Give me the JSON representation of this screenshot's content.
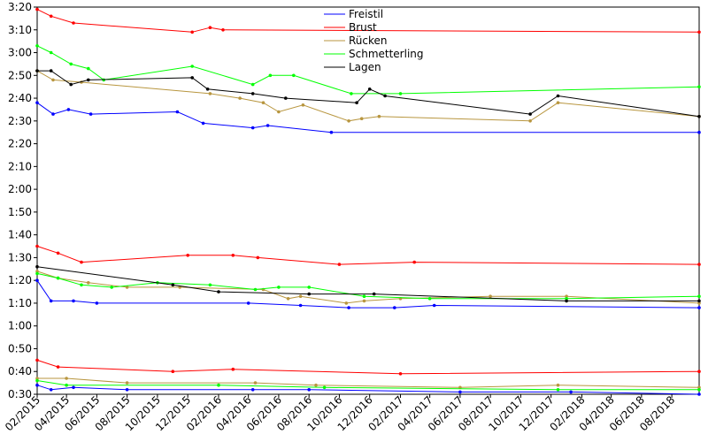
{
  "chart_data": {
    "type": "line",
    "xaxis_type": "date",
    "x_range": [
      "2015-02-01",
      "2018-09-25"
    ],
    "y_range": [
      "0:30",
      "3:20"
    ],
    "grid": false,
    "legend_position": "top-center",
    "x_tick_labels": [
      "02/2015",
      "04/2015",
      "06/2015",
      "08/2015",
      "10/2015",
      "12/2015",
      "02/2016",
      "04/2016",
      "06/2016",
      "08/2016",
      "10/2016",
      "12/2016",
      "02/2017",
      "04/2017",
      "06/2017",
      "08/2017",
      "10/2017",
      "12/2017",
      "02/2018",
      "04/2018",
      "06/2018",
      "08/2018"
    ],
    "y_tick_labels": [
      "0:30",
      "0:40",
      "0:50",
      "1:00",
      "1:10",
      "1:20",
      "1:30",
      "1:40",
      "1:50",
      "2:00",
      "2:10",
      "2:20",
      "2:30",
      "2:40",
      "2:50",
      "3:00",
      "3:10",
      "3:20"
    ],
    "series": [
      {
        "name": "Freistil",
        "color": "#0000ff",
        "lines": [
          {
            "points": [
              [
                "2015-02-01",
                "2:38"
              ],
              [
                "2015-03-05",
                "2:33"
              ],
              [
                "2015-04-05",
                "2:35"
              ],
              [
                "2015-05-20",
                "2:33"
              ],
              [
                "2015-11-10",
                "2:34"
              ],
              [
                "2016-01-01",
                "2:29"
              ],
              [
                "2016-04-10",
                "2:27"
              ],
              [
                "2016-05-10",
                "2:28"
              ],
              [
                "2016-09-15",
                "2:25"
              ],
              [
                "2018-09-25",
                "2:25"
              ]
            ]
          },
          {
            "points": [
              [
                "2015-02-01",
                "1:20"
              ],
              [
                "2015-03-01",
                "1:11"
              ],
              [
                "2015-04-15",
                "1:11"
              ],
              [
                "2015-06-01",
                "1:10"
              ],
              [
                "2016-04-01",
                "1:10"
              ],
              [
                "2016-07-15",
                "1:09"
              ],
              [
                "2016-10-20",
                "1:08"
              ],
              [
                "2017-01-20",
                "1:08"
              ],
              [
                "2017-04-10",
                "1:09"
              ],
              [
                "2018-09-25",
                "1:08"
              ]
            ]
          },
          {
            "points": [
              [
                "2015-02-01",
                "0:34"
              ],
              [
                "2015-03-01",
                "0:32"
              ],
              [
                "2015-04-15",
                "0:33"
              ],
              [
                "2015-08-01",
                "0:32"
              ],
              [
                "2016-04-10",
                "0:32"
              ],
              [
                "2016-08-01",
                "0:32"
              ],
              [
                "2017-06-01",
                "0:31"
              ],
              [
                "2018-01-10",
                "0:31"
              ],
              [
                "2018-09-25",
                "0:30"
              ]
            ]
          }
        ]
      },
      {
        "name": "Brust",
        "color": "#ff0000",
        "lines": [
          {
            "points": [
              [
                "2015-02-01",
                "3:19"
              ],
              [
                "2015-03-01",
                "3:16"
              ],
              [
                "2015-04-15",
                "3:13"
              ],
              [
                "2015-12-10",
                "3:09"
              ],
              [
                "2016-01-15",
                "3:11"
              ],
              [
                "2016-02-10",
                "3:10"
              ],
              [
                "2018-09-25",
                "3:09"
              ]
            ]
          },
          {
            "points": [
              [
                "2015-02-01",
                "1:35"
              ],
              [
                "2015-03-15",
                "1:32"
              ],
              [
                "2015-05-01",
                "1:28"
              ],
              [
                "2015-12-01",
                "1:31"
              ],
              [
                "2016-03-01",
                "1:31"
              ],
              [
                "2016-04-20",
                "1:30"
              ],
              [
                "2016-10-01",
                "1:27"
              ],
              [
                "2017-03-01",
                "1:28"
              ],
              [
                "2018-09-25",
                "1:27"
              ]
            ]
          },
          {
            "points": [
              [
                "2015-02-01",
                "0:45"
              ],
              [
                "2015-03-15",
                "0:42"
              ],
              [
                "2015-11-01",
                "0:40"
              ],
              [
                "2016-03-01",
                "0:41"
              ],
              [
                "2017-02-01",
                "0:39"
              ],
              [
                "2018-09-25",
                "0:40"
              ]
            ]
          }
        ]
      },
      {
        "name": "Rücken",
        "color": "#b8963f",
        "lines": [
          {
            "points": [
              [
                "2015-02-01",
                "2:52"
              ],
              [
                "2015-03-05",
                "2:48"
              ],
              [
                "2015-05-01",
                "2:47"
              ],
              [
                "2016-01-15",
                "2:42"
              ],
              [
                "2016-03-15",
                "2:40"
              ],
              [
                "2016-05-01",
                "2:38"
              ],
              [
                "2016-06-01",
                "2:34"
              ],
              [
                "2016-07-20",
                "2:37"
              ],
              [
                "2016-10-20",
                "2:30"
              ],
              [
                "2016-11-15",
                "2:31"
              ],
              [
                "2016-12-20",
                "2:32"
              ],
              [
                "2017-10-20",
                "2:30"
              ],
              [
                "2017-12-15",
                "2:38"
              ],
              [
                "2018-09-25",
                "2:32"
              ]
            ]
          },
          {
            "points": [
              [
                "2015-02-01",
                "1:24"
              ],
              [
                "2015-03-15",
                "1:21"
              ],
              [
                "2015-05-15",
                "1:19"
              ],
              [
                "2015-08-01",
                "1:17"
              ],
              [
                "2015-11-15",
                "1:17"
              ],
              [
                "2016-05-01",
                "1:16"
              ],
              [
                "2016-06-20",
                "1:12"
              ],
              [
                "2016-07-15",
                "1:13"
              ],
              [
                "2016-10-15",
                "1:10"
              ],
              [
                "2016-11-20",
                "1:11"
              ],
              [
                "2017-02-01",
                "1:12"
              ],
              [
                "2017-08-01",
                "1:13"
              ],
              [
                "2018-01-01",
                "1:13"
              ],
              [
                "2018-09-25",
                "1:10"
              ]
            ]
          },
          {
            "points": [
              [
                "2015-02-01",
                "0:37"
              ],
              [
                "2015-04-01",
                "0:37"
              ],
              [
                "2015-08-01",
                "0:35"
              ],
              [
                "2016-04-15",
                "0:35"
              ],
              [
                "2016-08-15",
                "0:34"
              ],
              [
                "2017-06-01",
                "0:33"
              ],
              [
                "2017-12-15",
                "0:34"
              ],
              [
                "2018-09-25",
                "0:33"
              ]
            ]
          }
        ]
      },
      {
        "name": "Schmetterling",
        "color": "#00ff00",
        "lines": [
          {
            "points": [
              [
                "2015-02-01",
                "3:03"
              ],
              [
                "2015-03-01",
                "3:00"
              ],
              [
                "2015-04-10",
                "2:55"
              ],
              [
                "2015-05-15",
                "2:53"
              ],
              [
                "2015-06-15",
                "2:48"
              ],
              [
                "2015-12-10",
                "2:54"
              ],
              [
                "2016-04-10",
                "2:46"
              ],
              [
                "2016-05-15",
                "2:50"
              ],
              [
                "2016-07-01",
                "2:50"
              ],
              [
                "2016-10-25",
                "2:42"
              ],
              [
                "2017-02-01",
                "2:42"
              ],
              [
                "2018-09-25",
                "2:45"
              ]
            ]
          },
          {
            "points": [
              [
                "2015-02-01",
                "1:23"
              ],
              [
                "2015-03-15",
                "1:21"
              ],
              [
                "2015-05-01",
                "1:18"
              ],
              [
                "2015-07-01",
                "1:17"
              ],
              [
                "2015-10-01",
                "1:19"
              ],
              [
                "2016-01-15",
                "1:18"
              ],
              [
                "2016-04-15",
                "1:16"
              ],
              [
                "2016-06-01",
                "1:17"
              ],
              [
                "2016-08-01",
                "1:17"
              ],
              [
                "2016-11-20",
                "1:13"
              ],
              [
                "2017-04-01",
                "1:12"
              ],
              [
                "2018-01-01",
                "1:12"
              ],
              [
                "2018-09-25",
                "1:13"
              ]
            ]
          },
          {
            "points": [
              [
                "2015-02-01",
                "0:36"
              ],
              [
                "2015-04-01",
                "0:34"
              ],
              [
                "2016-02-01",
                "0:34"
              ],
              [
                "2016-09-01",
                "0:33"
              ],
              [
                "2017-12-15",
                "0:32"
              ],
              [
                "2018-09-25",
                "0:32"
              ]
            ]
          }
        ]
      },
      {
        "name": "Lagen",
        "color": "#000000",
        "lines": [
          {
            "points": [
              [
                "2015-02-01",
                "2:52"
              ],
              [
                "2015-03-01",
                "2:52"
              ],
              [
                "2015-04-10",
                "2:46"
              ],
              [
                "2015-05-15",
                "2:48"
              ],
              [
                "2015-12-10",
                "2:49"
              ],
              [
                "2016-01-10",
                "2:44"
              ],
              [
                "2016-04-10",
                "2:42"
              ],
              [
                "2016-06-15",
                "2:40"
              ],
              [
                "2016-11-05",
                "2:38"
              ],
              [
                "2016-12-01",
                "2:44"
              ],
              [
                "2017-01-01",
                "2:41"
              ],
              [
                "2017-10-20",
                "2:33"
              ],
              [
                "2017-12-15",
                "2:41"
              ],
              [
                "2018-09-25",
                "2:32"
              ]
            ]
          },
          {
            "points": [
              [
                "2015-02-01",
                "1:26"
              ],
              [
                "2015-11-01",
                "1:18"
              ],
              [
                "2016-02-01",
                "1:15"
              ],
              [
                "2016-08-01",
                "1:14"
              ],
              [
                "2016-12-10",
                "1:14"
              ],
              [
                "2018-01-01",
                "1:11"
              ],
              [
                "2018-09-25",
                "1:11"
              ]
            ]
          }
        ]
      }
    ]
  }
}
